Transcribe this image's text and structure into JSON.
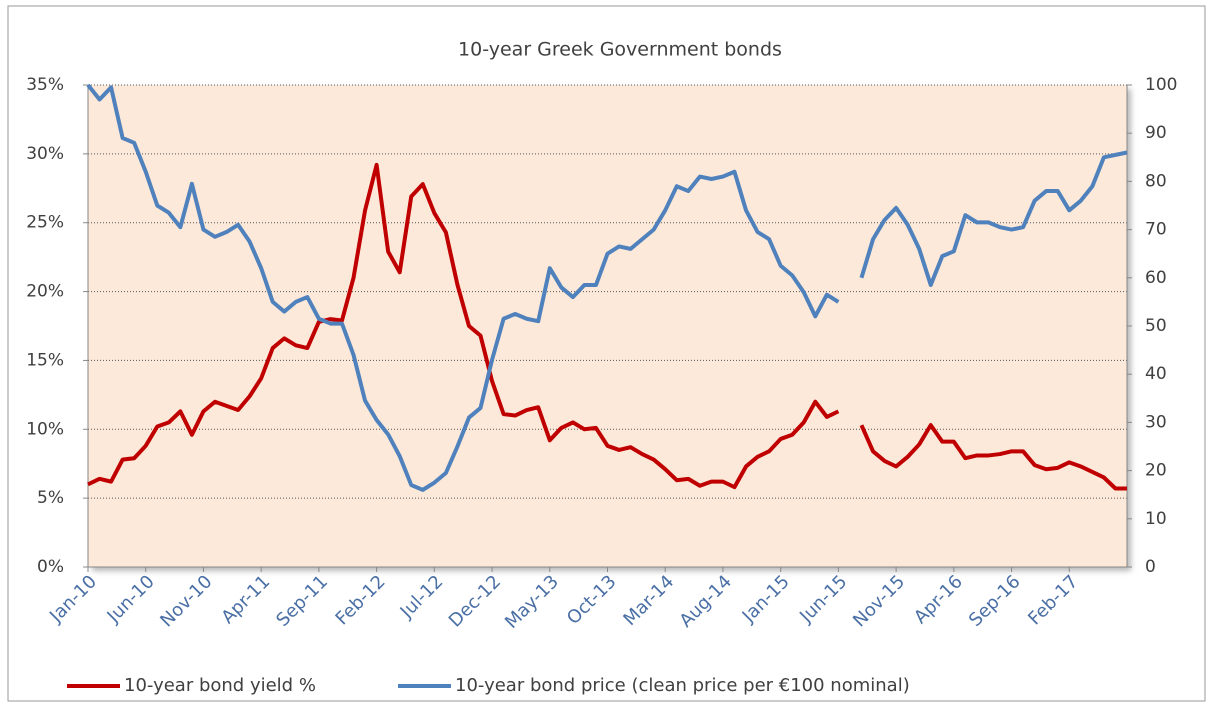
{
  "chart_data": {
    "type": "line",
    "title": "10-year Greek Government bonds",
    "categories": [
      "Jan-10",
      null,
      null,
      null,
      null,
      "Jun-10",
      null,
      null,
      null,
      null,
      "Nov-10",
      null,
      null,
      null,
      null,
      "Apr-11",
      null,
      null,
      null,
      null,
      "Sep-11",
      null,
      null,
      null,
      null,
      "Feb-12",
      null,
      null,
      null,
      null,
      "Jul-12",
      null,
      null,
      null,
      null,
      "Dec-12",
      null,
      null,
      null,
      null,
      "May-13",
      null,
      null,
      null,
      null,
      "Oct-13",
      null,
      null,
      null,
      null,
      "Mar-14",
      null,
      null,
      null,
      null,
      "Aug-14",
      null,
      null,
      null,
      null,
      "Jan-15",
      null,
      null,
      null,
      null,
      "Jun-15",
      null,
      null,
      null,
      null,
      "Nov-15",
      null,
      null,
      null,
      null,
      "Apr-16",
      null,
      null,
      null,
      null,
      "Sep-16",
      null,
      null,
      null,
      null,
      "Feb-17",
      null,
      null,
      null,
      null,
      null
    ],
    "series": [
      {
        "name": "10-year bond yield %",
        "color": "#c00000",
        "axis": "y",
        "values": [
          6.0,
          6.4,
          6.2,
          7.8,
          7.9,
          8.8,
          10.2,
          10.5,
          11.3,
          9.6,
          11.3,
          12.0,
          11.7,
          11.4,
          12.4,
          13.7,
          15.9,
          16.6,
          16.1,
          15.9,
          17.8,
          18.0,
          17.9,
          21.0,
          25.9,
          29.2,
          22.9,
          21.4,
          26.9,
          27.8,
          25.7,
          24.3,
          20.5,
          17.5,
          16.8,
          13.5,
          11.1,
          11.0,
          11.4,
          11.6,
          9.2,
          10.1,
          10.5,
          10.0,
          10.1,
          8.8,
          8.5,
          8.7,
          8.2,
          7.8,
          7.1,
          6.3,
          6.4,
          5.9,
          6.2,
          6.2,
          5.8,
          7.3,
          8.0,
          8.4,
          9.3,
          9.6,
          10.5,
          12.0,
          10.9,
          11.3,
          null,
          10.3,
          8.4,
          7.7,
          7.3,
          8.0,
          8.9,
          10.3,
          9.1,
          9.1,
          7.9,
          8.1,
          8.1,
          8.2,
          8.4,
          8.4,
          7.4,
          7.1,
          7.2,
          7.6,
          7.3,
          6.9,
          6.5,
          5.7,
          5.7
        ]
      },
      {
        "name": "10-year bond price (clean price per €100 nominal)",
        "color": "#4f81bd",
        "axis": "y2",
        "values": [
          100,
          97,
          99.5,
          89,
          88,
          82,
          75,
          73.5,
          70.5,
          79.5,
          70,
          68.5,
          69.5,
          71,
          67.5,
          62,
          55,
          53,
          55,
          56,
          51.5,
          50.5,
          50.5,
          44,
          34.5,
          30.5,
          27.5,
          23,
          17,
          16,
          17.5,
          19.5,
          25,
          31,
          33,
          43,
          51.5,
          52.5,
          51.5,
          51,
          62,
          58,
          56,
          58.5,
          58.5,
          65,
          66.5,
          66,
          68,
          70,
          74,
          79,
          78,
          81,
          80.5,
          81,
          82,
          74,
          69.5,
          68,
          62.5,
          60.5,
          57,
          52,
          56.5,
          55,
          null,
          60,
          68,
          72,
          74.5,
          71,
          66,
          58.5,
          64.5,
          65.5,
          73,
          71.5,
          71.5,
          70.5,
          70,
          70.5,
          76,
          78,
          78,
          74,
          76,
          79,
          85,
          85.5,
          86
        ]
      }
    ],
    "ylim": [
      0,
      35
    ],
    "yticks": [
      {
        "value": 0,
        "label": "0%"
      },
      {
        "value": 5,
        "label": "5%"
      },
      {
        "value": 10,
        "label": "10%"
      },
      {
        "value": 15,
        "label": "15%"
      },
      {
        "value": 20,
        "label": "20%"
      },
      {
        "value": 25,
        "label": "25%"
      },
      {
        "value": 30,
        "label": "30%"
      },
      {
        "value": 35,
        "label": "35%"
      }
    ],
    "y2lim": [
      0,
      100
    ],
    "y2ticks": [
      0,
      10,
      20,
      30,
      40,
      50,
      60,
      70,
      80,
      90,
      100
    ],
    "grid": true,
    "legend": "bottom"
  }
}
